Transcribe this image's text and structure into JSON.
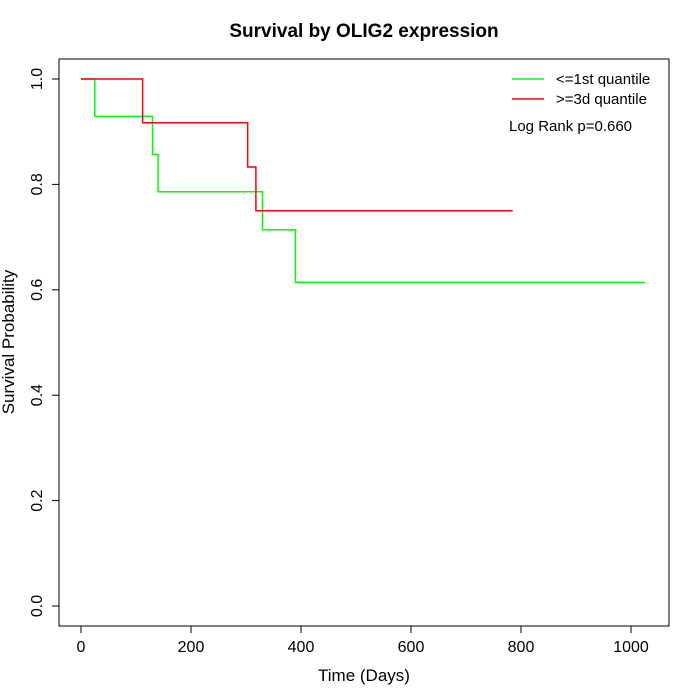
{
  "chart_data": {
    "type": "line",
    "step": true,
    "title": "Survival by OLIG2 expression",
    "xlabel": "Time (Days)",
    "ylabel": "Survival Probability",
    "xlim": [
      0,
      1025
    ],
    "ylim": [
      0.0,
      1.0
    ],
    "xticks": [
      0,
      200,
      400,
      600,
      800,
      1000
    ],
    "yticks": [
      "0.0",
      "0.2",
      "0.4",
      "0.6",
      "0.8",
      "1.0"
    ],
    "grid": false,
    "legend_position": "top-right",
    "annotation": "Log Rank p=0.660",
    "series": [
      {
        "name": "<=1st quantile",
        "color": "#00ff00",
        "x": [
          0,
          25,
          130,
          140,
          330,
          390,
          1025
        ],
        "y": [
          1.0,
          0.929,
          0.857,
          0.786,
          0.714,
          0.614,
          0.614
        ]
      },
      {
        "name": ">=3d quantile",
        "color": "#ff0000",
        "x": [
          0,
          112,
          303,
          318,
          785
        ],
        "y": [
          1.0,
          0.917,
          0.833,
          0.75,
          0.75
        ]
      }
    ]
  }
}
